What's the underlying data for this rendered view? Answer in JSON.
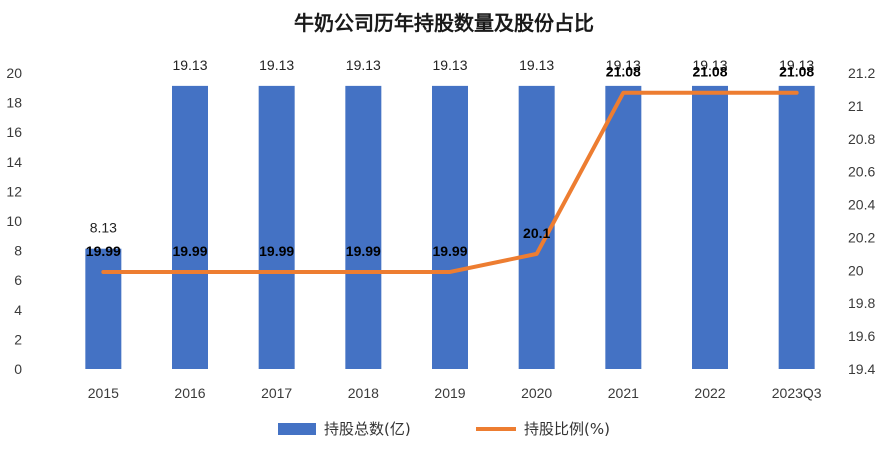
{
  "chart_data": {
    "type": "bar",
    "title": "牛奶公司历年持股数量及股份占比",
    "categories": [
      "2015",
      "2016",
      "2017",
      "2018",
      "2019",
      "2020",
      "2021",
      "2022",
      "2023Q3"
    ],
    "series": [
      {
        "name": "持股总数(亿)",
        "type": "bar",
        "axis": "left",
        "color": "#4472C4",
        "values": [
          8.13,
          19.13,
          19.13,
          19.13,
          19.13,
          19.13,
          19.13,
          19.13,
          19.13
        ],
        "labels": [
          "8.13",
          "19.13",
          "19.13",
          "19.13",
          "19.13",
          "19.13",
          "19.13",
          "19.13",
          "19.13"
        ]
      },
      {
        "name": "持股比例(%)",
        "type": "line",
        "axis": "right",
        "color": "#ED7D31",
        "values": [
          19.99,
          19.99,
          19.99,
          19.99,
          19.99,
          20.1,
          21.08,
          21.08,
          21.08
        ],
        "labels": [
          "19.99",
          "19.99",
          "19.99",
          "19.99",
          "19.99",
          "20.1",
          "21.08",
          "21.08",
          "21.08"
        ]
      }
    ],
    "y_left": {
      "min": 0,
      "max": 20,
      "ticks": [
        "0",
        "2",
        "4",
        "6",
        "8",
        "10",
        "12",
        "14",
        "16",
        "18",
        "20"
      ]
    },
    "y_right": {
      "min": 19.4,
      "max": 21.2,
      "ticks": [
        "19.4",
        "19.6",
        "19.8",
        "20",
        "20.2",
        "20.4",
        "20.6",
        "20.8",
        "21",
        "21.2"
      ]
    },
    "legend": {
      "position": "bottom",
      "items": [
        "持股总数(亿)",
        "持股比例(%)"
      ]
    },
    "grid": false
  }
}
